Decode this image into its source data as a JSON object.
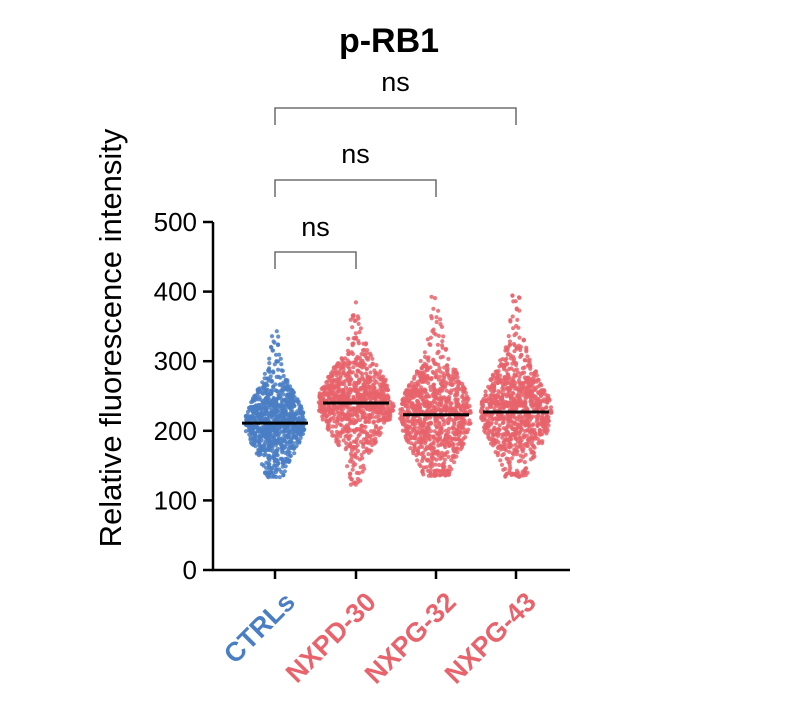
{
  "chart_data": {
    "type": "scatter",
    "subtype": "violin-dot-plot",
    "title": "p-RB1",
    "xlabel": "",
    "ylabel": "Relative fluorescence intensity",
    "ylim": [
      0,
      500
    ],
    "yticks": [
      0,
      100,
      200,
      300,
      400,
      500
    ],
    "categories": [
      "CTRLs",
      "NXPD-30",
      "NXPG-32",
      "NXPG-43"
    ],
    "category_colors": [
      "#4a7ec4",
      "#e8636b",
      "#e8636b",
      "#e8636b"
    ],
    "series": [
      {
        "name": "CTRLs",
        "median": 211,
        "min": 133,
        "max": 347,
        "color": "#4a7ec4"
      },
      {
        "name": "NXPD-30",
        "median": 240,
        "min": 122,
        "max": 385,
        "color": "#e8636b"
      },
      {
        "name": "NXPG-32",
        "median": 223,
        "min": 135,
        "max": 395,
        "color": "#e8636b"
      },
      {
        "name": "NXPG-43",
        "median": 227,
        "min": 133,
        "max": 395,
        "color": "#e8636b"
      }
    ],
    "comparisons": [
      {
        "from": "CTRLs",
        "to": "NXPD-30",
        "label": "ns"
      },
      {
        "from": "CTRLs",
        "to": "NXPG-32",
        "label": "ns"
      },
      {
        "from": "CTRLs",
        "to": "NXPG-43",
        "label": "ns"
      }
    ]
  }
}
